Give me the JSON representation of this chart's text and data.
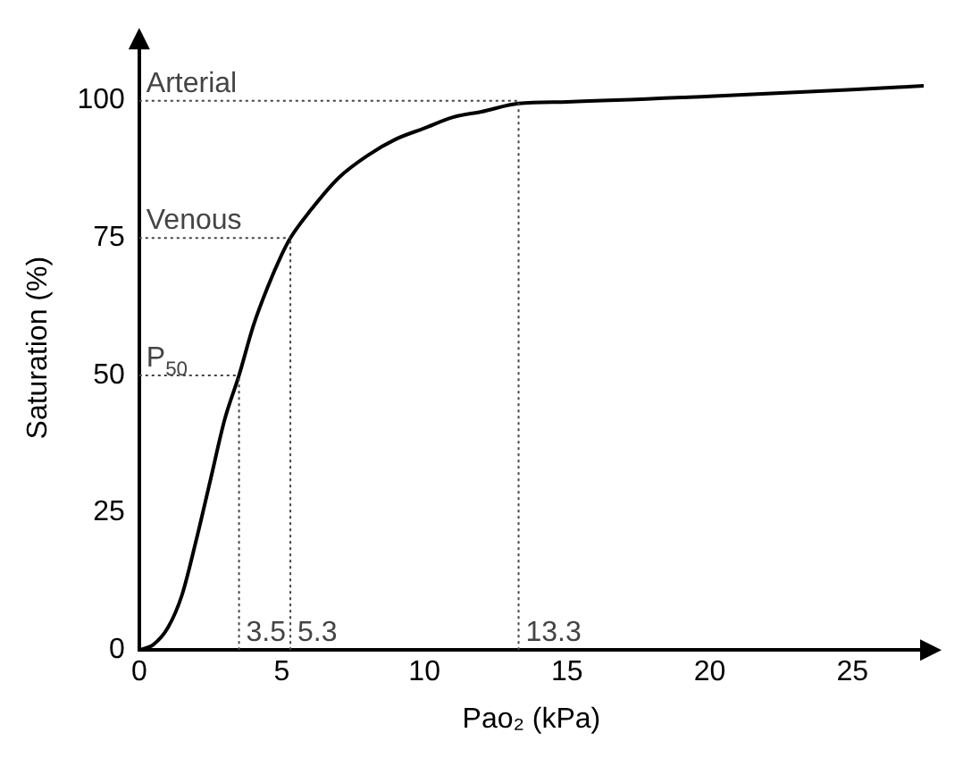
{
  "chart_data": {
    "type": "line",
    "xlabel": "Pao₂ (kPa)",
    "ylabel": "Saturation (%)",
    "series": [
      {
        "color": "#000000",
        "x": [
          0,
          0.5,
          1,
          1.5,
          2,
          2.5,
          3,
          3.5,
          4,
          4.5,
          5,
          5.3,
          6,
          7,
          8,
          9,
          10,
          11,
          12,
          13.3,
          15,
          20,
          25,
          27.5
        ],
        "values": [
          0,
          1,
          4,
          10,
          20,
          31,
          42,
          50,
          59,
          66,
          72,
          75,
          80,
          86,
          90,
          93,
          95,
          97,
          98,
          99.5,
          99.8,
          100.8,
          102,
          102.7
        ]
      }
    ],
    "xlim": [
      0,
      27.5
    ],
    "ylim": [
      0,
      110
    ],
    "xticks": [
      0,
      5,
      10,
      15,
      20,
      25
    ],
    "yticks": [
      0,
      25,
      50,
      75,
      100
    ],
    "grid": false,
    "legend": false,
    "marker": "none",
    "line_style": "solid",
    "ref_lines": [
      {
        "axis": "x",
        "value": 3.5,
        "label": "3.5",
        "color": "#444444",
        "line_style": "dotted"
      },
      {
        "axis": "y",
        "value": 50,
        "label": "P$_{50}$",
        "color": "#444444",
        "line_style": "dotted"
      },
      {
        "axis": "x",
        "value": 5.3,
        "label": "5.3",
        "color": "#444444",
        "line_style": "dotted"
      },
      {
        "axis": "y",
        "value": 75,
        "label": "Venous",
        "color": "#444444",
        "line_style": "dotted"
      },
      {
        "axis": "x",
        "value": 13.3,
        "label": "13.3",
        "color": "#444444",
        "line_style": "dotted"
      },
      {
        "axis": "y",
        "value": 100,
        "label": "Arterial",
        "color": "#444444",
        "line_style": "dotted"
      }
    ]
  }
}
